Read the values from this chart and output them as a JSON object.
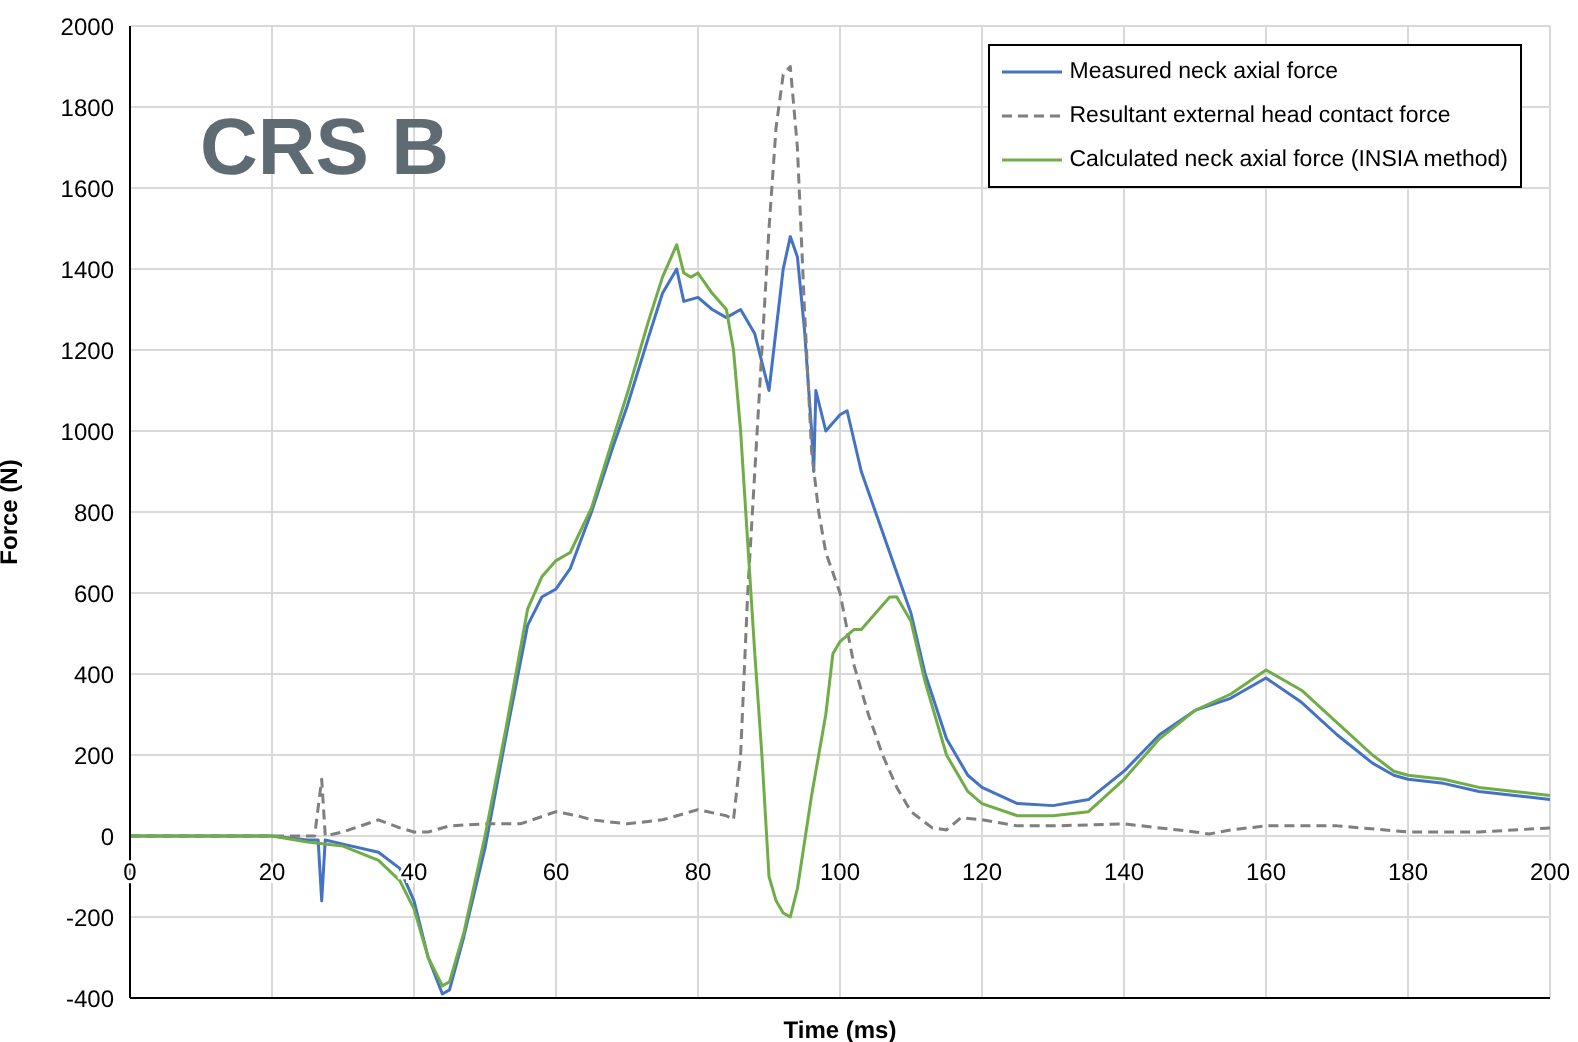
{
  "chart_data": {
    "type": "line",
    "xlabel": "Time (ms)",
    "ylabel": "Force (N)",
    "annotations": [
      "CRS B"
    ],
    "xlim": [
      0,
      200
    ],
    "xticks": [
      0,
      20,
      40,
      60,
      80,
      100,
      120,
      140,
      160,
      180,
      200
    ],
    "ylim": [
      -400,
      2000
    ],
    "yticks": [
      -400,
      -200,
      0,
      200,
      400,
      600,
      800,
      1000,
      1200,
      1400,
      1600,
      1800,
      2000
    ],
    "grid": true,
    "legend": "top right",
    "marker": "none",
    "series": [
      {
        "name": "Measured neck axial force",
        "color": "#4472c4",
        "line_style": "solid",
        "x": [
          0,
          10,
          20,
          25,
          26.5,
          27,
          27.5,
          30,
          35,
          38,
          40,
          42,
          44,
          45,
          47,
          50,
          53,
          56,
          58,
          60,
          62,
          65,
          68,
          70,
          73,
          75,
          77,
          78,
          80,
          82,
          84,
          86,
          88,
          90,
          92,
          93,
          94,
          95,
          96,
          96.3,
          96.6,
          98,
          100,
          101,
          103,
          105,
          108,
          110,
          112,
          115,
          118,
          120,
          125,
          130,
          135,
          140,
          145,
          150,
          155,
          160,
          165,
          170,
          175,
          178,
          180,
          185,
          190,
          195,
          200
        ],
        "values": [
          0,
          0,
          0,
          -10,
          -10,
          -160,
          -10,
          -20,
          -40,
          -80,
          -160,
          -300,
          -390,
          -380,
          -250,
          -30,
          250,
          520,
          590,
          610,
          660,
          800,
          960,
          1060,
          1230,
          1340,
          1400,
          1320,
          1330,
          1300,
          1280,
          1300,
          1240,
          1100,
          1400,
          1480,
          1430,
          1250,
          1000,
          900,
          1100,
          1000,
          1040,
          1050,
          900,
          800,
          650,
          550,
          400,
          240,
          150,
          120,
          80,
          75,
          90,
          160,
          250,
          310,
          340,
          390,
          330,
          250,
          180,
          150,
          140,
          130,
          110,
          100,
          90
        ]
      },
      {
        "name": "Resultant external head contact force",
        "color": "#7f7f7f",
        "line_style": "dashed",
        "x": [
          0,
          20,
          26,
          27,
          27.5,
          30,
          35,
          38,
          40,
          42,
          45,
          50,
          55,
          60,
          63,
          65,
          70,
          75,
          80,
          84,
          85,
          86,
          87,
          88,
          89,
          90,
          91,
          92,
          93,
          94,
          95,
          96,
          97,
          98,
          100,
          102,
          104,
          106,
          108,
          110,
          113,
          115,
          117,
          120,
          125,
          130,
          140,
          150,
          152,
          155,
          160,
          170,
          180,
          190,
          200
        ],
        "values": [
          0,
          0,
          0,
          140,
          0,
          10,
          40,
          20,
          10,
          10,
          25,
          30,
          30,
          60,
          50,
          40,
          30,
          40,
          65,
          50,
          40,
          200,
          600,
          900,
          1200,
          1500,
          1750,
          1880,
          1900,
          1700,
          1300,
          950,
          800,
          700,
          600,
          420,
          300,
          200,
          120,
          60,
          20,
          15,
          45,
          40,
          25,
          25,
          30,
          10,
          5,
          15,
          25,
          25,
          10,
          10,
          20
        ]
      },
      {
        "name": "Calculated neck axial force (INSIA method)",
        "color": "#70ad47",
        "line_style": "solid",
        "x": [
          0,
          20,
          25,
          30,
          35,
          38,
          40,
          42,
          44,
          45,
          47,
          50,
          53,
          56,
          58,
          60,
          62,
          65,
          68,
          70,
          73,
          75,
          77,
          78,
          79,
          80,
          82,
          84,
          85,
          86,
          88,
          89,
          90,
          91,
          92,
          93,
          94,
          96,
          98,
          99,
          100,
          102,
          103,
          105,
          107,
          108,
          110,
          112,
          115,
          118,
          120,
          125,
          130,
          135,
          140,
          145,
          150,
          155,
          160,
          165,
          170,
          175,
          178,
          180,
          185,
          190,
          195,
          200
        ],
        "values": [
          0,
          0,
          -15,
          -25,
          -60,
          -110,
          -180,
          -300,
          -370,
          -360,
          -240,
          0,
          270,
          560,
          640,
          680,
          700,
          810,
          980,
          1090,
          1270,
          1380,
          1460,
          1390,
          1380,
          1390,
          1340,
          1300,
          1200,
          1000,
          450,
          200,
          -100,
          -160,
          -190,
          -200,
          -130,
          100,
          300,
          450,
          480,
          510,
          510,
          550,
          590,
          590,
          530,
          380,
          200,
          110,
          80,
          50,
          50,
          60,
          140,
          240,
          310,
          350,
          410,
          360,
          280,
          200,
          160,
          150,
          140,
          120,
          110,
          100
        ]
      }
    ]
  }
}
